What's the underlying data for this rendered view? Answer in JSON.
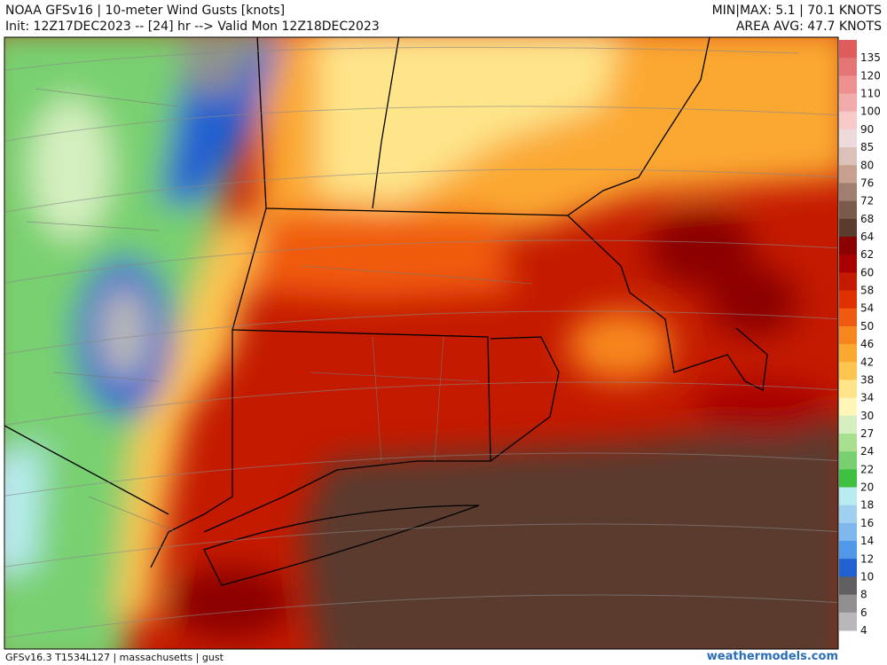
{
  "header": {
    "title": "NOAA GFSv16 | 10-meter Wind Gusts [knots]",
    "init": "Init: 12Z17DEC2023 -- [24] hr --> Valid Mon 12Z18DEC2023",
    "minmax": "MIN|MAX: 5.1 | 70.1 KNOTS",
    "area_avg": "AREA AVG: 47.7 KNOTS"
  },
  "legend": {
    "levels": [
      135,
      120,
      110,
      100,
      90,
      85,
      80,
      76,
      72,
      68,
      64,
      62,
      60,
      58,
      54,
      50,
      46,
      42,
      38,
      34,
      30,
      27,
      24,
      22,
      20,
      18,
      16,
      14,
      12,
      10,
      8,
      6,
      4
    ],
    "colors": [
      "#de5c5c",
      "#e57676",
      "#ec9090",
      "#f2abab",
      "#f8c9c9",
      "#eddada",
      "#dcc1b8",
      "#c7a08f",
      "#9e7f70",
      "#7a5a4a",
      "#5a3b2e",
      "#8b0000",
      "#a80000",
      "#c41a00",
      "#e03000",
      "#f05a10",
      "#f8861e",
      "#fba830",
      "#fdc450",
      "#fee58a",
      "#fff6b8",
      "#d6efc0",
      "#a8e090",
      "#78d070",
      "#40c040",
      "#b8ecf0",
      "#a0d0f0",
      "#80b8ee",
      "#5098e8",
      "#2060d0",
      "#606060",
      "#909090",
      "#b8b8b8"
    ]
  },
  "footer": {
    "left": "GFSv16.3 T1534L127 | massachusetts | gust",
    "right": "weathermodels.com"
  }
}
